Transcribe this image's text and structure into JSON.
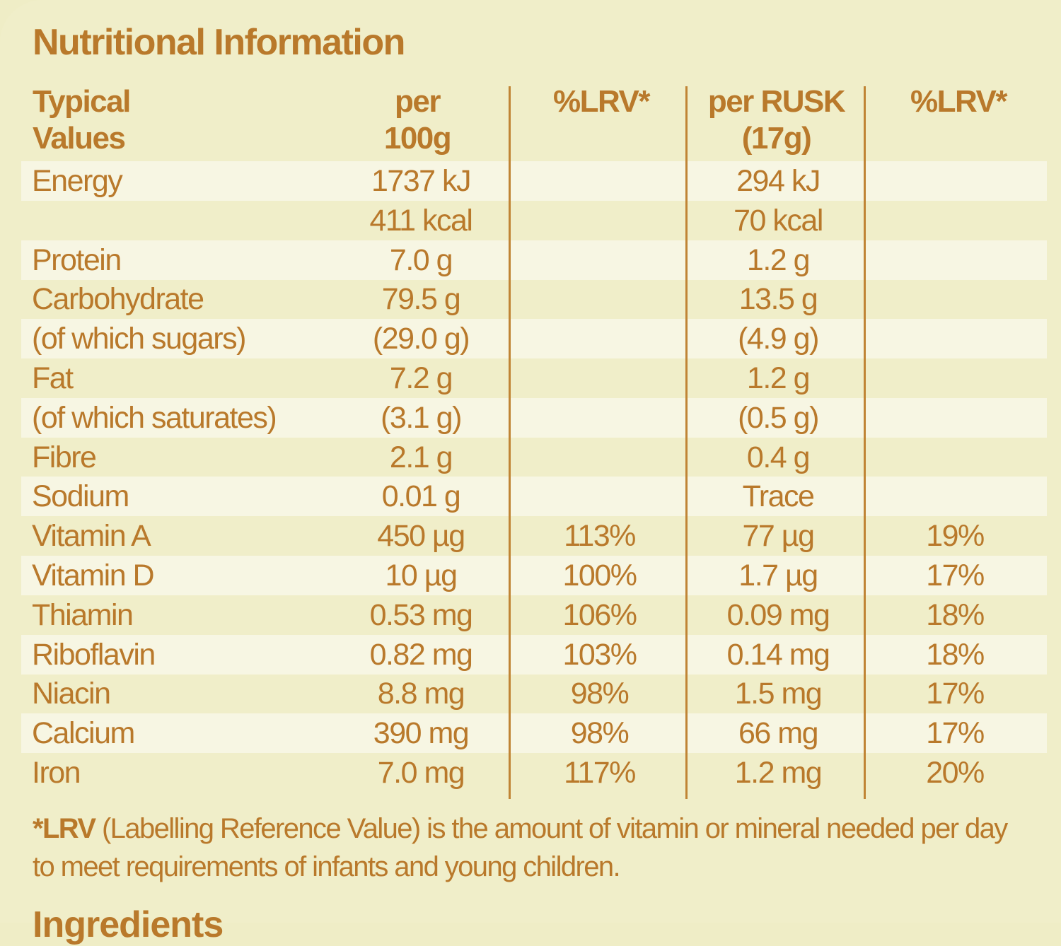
{
  "title": "Nutritional Information",
  "headers": [
    "Typical Values",
    "per 100g",
    "%LRV*",
    "per RUSK (17g)",
    "%LRV*"
  ],
  "header_lines": {
    "h0a": "Typical",
    "h0b": "Values",
    "h1a": "per",
    "h1b": "100g",
    "h2a": "%LRV*",
    "h3a": "per RUSK",
    "h3b": "(17g)",
    "h4a": "%LRV*"
  },
  "rows": [
    [
      "Energy",
      "1737 kJ",
      "",
      "294 kJ",
      ""
    ],
    [
      "",
      "411 kcal",
      "",
      "70 kcal",
      ""
    ],
    [
      "Protein",
      "7.0 g",
      "",
      "1.2 g",
      ""
    ],
    [
      "Carbohydrate",
      "79.5 g",
      "",
      "13.5 g",
      ""
    ],
    [
      "(of which sugars)",
      "(29.0 g)",
      "",
      "(4.9 g)",
      ""
    ],
    [
      "Fat",
      "7.2 g",
      "",
      "1.2 g",
      ""
    ],
    [
      "(of which saturates)",
      "(3.1 g)",
      "",
      "(0.5 g)",
      ""
    ],
    [
      "Fibre",
      "2.1 g",
      "",
      "0.4 g",
      ""
    ],
    [
      "Sodium",
      "0.01 g",
      "",
      "Trace",
      ""
    ],
    [
      "Vitamin A",
      "450 µg",
      "113%",
      "77 µg",
      "19%"
    ],
    [
      "Vitamin D",
      "10 µg",
      "100%",
      "1.7 µg",
      "17%"
    ],
    [
      "Thiamin",
      "0.53 mg",
      "106%",
      "0.09 mg",
      "18%"
    ],
    [
      "Riboflavin",
      "0.82 mg",
      "103%",
      "0.14 mg",
      "18%"
    ],
    [
      "Niacin",
      "8.8 mg",
      "98%",
      "1.5 mg",
      "17%"
    ],
    [
      "Calcium",
      "390 mg",
      "98%",
      "66 mg",
      "17%"
    ],
    [
      "Iron",
      "7.0 mg",
      "117%",
      "1.2 mg",
      "20%"
    ]
  ],
  "footnote": {
    "bold": "*LRV",
    "text": " (Labelling Reference Value) is the amount of vitamin or mineral needed per day to meet requirements of infants and young children."
  },
  "next_heading": "Ingredients",
  "colors": {
    "text": "#b9792b",
    "background": "#f0eec9",
    "stripe": "#f7f6e3"
  }
}
